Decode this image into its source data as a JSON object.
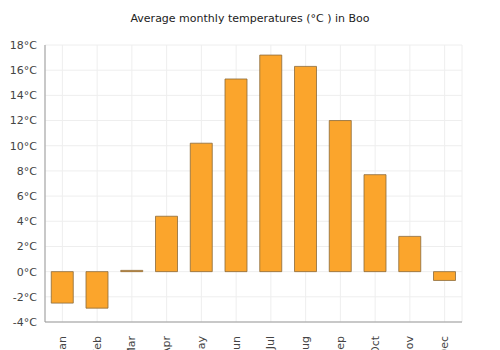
{
  "chart_data": {
    "type": "bar",
    "title": "Average monthly temperatures (°C ) in Boo",
    "categories": [
      "Jan",
      "Feb",
      "Mar",
      "Apr",
      "May",
      "Jun",
      "Jul",
      "Aug",
      "Sep",
      "Oct",
      "Nov",
      "Dec"
    ],
    "values": [
      -2.5,
      -2.9,
      0.1,
      4.4,
      10.2,
      15.3,
      17.2,
      16.3,
      12.0,
      7.7,
      2.8,
      -0.7
    ],
    "color": "#fba52c",
    "ylim": [
      -4,
      18
    ],
    "yticks": [
      {
        "value": -4,
        "label": "-4°C"
      },
      {
        "value": -2,
        "label": "-2°C"
      },
      {
        "value": 0,
        "label": "0°C"
      },
      {
        "value": 2,
        "label": "2°C"
      },
      {
        "value": 4,
        "label": "4°C"
      },
      {
        "value": 6,
        "label": "6°C"
      },
      {
        "value": 8,
        "label": "8°C"
      },
      {
        "value": 10,
        "label": "10°C"
      },
      {
        "value": 12,
        "label": "12°C"
      },
      {
        "value": 14,
        "label": "14°C"
      },
      {
        "value": 16,
        "label": "16°C"
      },
      {
        "value": 18,
        "label": "18°C"
      }
    ],
    "grid": true
  }
}
